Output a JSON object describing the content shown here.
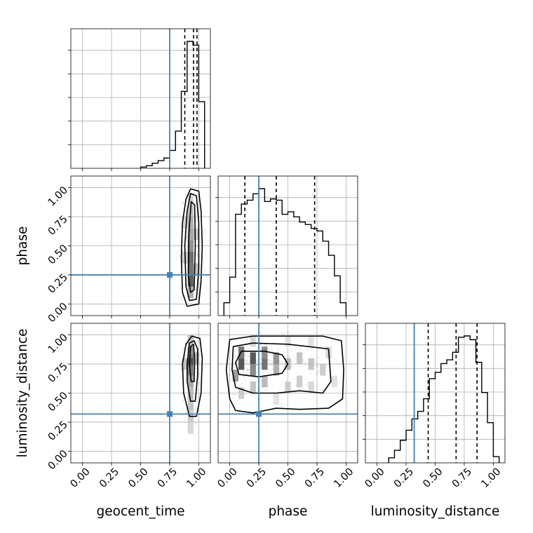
{
  "chart_data": {
    "type": "corner",
    "parameters": [
      "geocent_time",
      "phase",
      "luminosity_distance"
    ],
    "axis_range": [
      -0.1,
      1.1
    ],
    "ticks": [
      0.0,
      0.25,
      0.5,
      0.75,
      1.0
    ],
    "tick_labels": [
      "0.00",
      "0.25",
      "0.50",
      "0.75",
      "1.00"
    ],
    "grid": true,
    "colors": {
      "truth": "#4682b4",
      "hist": "#000000",
      "quantile": "#000000",
      "grid": "#b0b0b0"
    },
    "truths": {
      "geocent_time": 0.75,
      "phase": 0.25,
      "luminosity_distance": 0.32
    },
    "marginals": [
      {
        "parameter": "geocent_time",
        "bin_edges": [
          0.5,
          0.55,
          0.6,
          0.65,
          0.7,
          0.75,
          0.8,
          0.85,
          0.9,
          0.95,
          1.0,
          1.05
        ],
        "counts": [
          1,
          2,
          4,
          6,
          8,
          14,
          29,
          60,
          99,
          96,
          52
        ],
        "quantiles": [
          0.88,
          0.955,
          0.985
        ]
      },
      {
        "parameter": "phase",
        "bin_edges": [
          -0.05,
          0.0,
          0.05,
          0.1,
          0.15,
          0.2,
          0.25,
          0.3,
          0.35,
          0.4,
          0.45,
          0.5,
          0.55,
          0.6,
          0.65,
          0.7,
          0.75,
          0.8,
          0.85,
          0.9,
          0.95,
          1.0
        ],
        "counts": [
          10,
          30,
          79,
          87,
          90,
          95,
          99,
          89,
          91,
          90,
          79,
          81,
          77,
          73,
          71,
          68,
          66,
          58,
          47,
          31,
          10
        ],
        "quantiles": [
          0.13,
          0.4,
          0.73
        ]
      },
      {
        "parameter": "luminosity_distance",
        "bin_edges": [
          0.1,
          0.15,
          0.2,
          0.25,
          0.3,
          0.35,
          0.4,
          0.45,
          0.5,
          0.55,
          0.6,
          0.65,
          0.7,
          0.75,
          0.8,
          0.85,
          0.9,
          0.95,
          1.0,
          1.05
        ],
        "counts": [
          4,
          10,
          18,
          26,
          35,
          41,
          51,
          67,
          72,
          79,
          82,
          88,
          100,
          101,
          98,
          80,
          56,
          32,
          5
        ],
        "quantiles": [
          0.44,
          0.68,
          0.86
        ]
      }
    ],
    "joints": [
      {
        "x": "geocent_time",
        "y": "phase",
        "contours": [
          {
            "level": "outer",
            "points": [
              [
                0.9,
                -0.02
              ],
              [
                1.0,
                0.0
              ],
              [
                1.02,
                0.2
              ],
              [
                1.03,
                0.5
              ],
              [
                1.02,
                0.8
              ],
              [
                1.0,
                0.97
              ],
              [
                0.93,
                0.99
              ],
              [
                0.89,
                0.9
              ],
              [
                0.86,
                0.7
              ],
              [
                0.85,
                0.4
              ],
              [
                0.86,
                0.1
              ]
            ]
          },
          {
            "level": "middle",
            "points": [
              [
                0.92,
                0.03
              ],
              [
                0.98,
                0.04
              ],
              [
                1.0,
                0.3
              ],
              [
                1.0,
                0.7
              ],
              [
                0.98,
                0.93
              ],
              [
                0.93,
                0.95
              ],
              [
                0.9,
                0.8
              ],
              [
                0.88,
                0.5
              ],
              [
                0.89,
                0.15
              ]
            ]
          },
          {
            "level": "inner",
            "points": [
              [
                0.93,
                0.1
              ],
              [
                0.96,
                0.12
              ],
              [
                0.97,
                0.5
              ],
              [
                0.965,
                0.85
              ],
              [
                0.935,
                0.88
              ],
              [
                0.915,
                0.6
              ],
              [
                0.91,
                0.25
              ]
            ]
          }
        ],
        "density": [
          [
            0.93,
            0.2,
            0.8
          ],
          [
            0.93,
            0.3,
            0.7
          ],
          [
            0.93,
            0.4,
            0.75
          ],
          [
            0.93,
            0.5,
            0.55
          ],
          [
            0.93,
            0.6,
            0.45
          ],
          [
            0.93,
            0.7,
            0.4
          ],
          [
            0.93,
            0.8,
            0.3
          ],
          [
            0.93,
            0.1,
            0.4
          ],
          [
            0.93,
            0.9,
            0.2
          ],
          [
            0.98,
            0.3,
            0.3
          ],
          [
            0.98,
            0.6,
            0.25
          ],
          [
            0.88,
            0.4,
            0.25
          ],
          [
            0.88,
            0.7,
            0.2
          ]
        ]
      },
      {
        "x": "geocent_time",
        "y": "luminosity_distance",
        "contours": [
          {
            "level": "outer",
            "points": [
              [
                0.92,
                0.3
              ],
              [
                0.98,
                0.3
              ],
              [
                1.02,
                0.5
              ],
              [
                1.03,
                0.8
              ],
              [
                1.01,
                0.97
              ],
              [
                0.94,
                0.99
              ],
              [
                0.89,
                0.92
              ],
              [
                0.86,
                0.75
              ],
              [
                0.87,
                0.5
              ]
            ]
          },
          {
            "level": "middle",
            "points": [
              [
                0.93,
                0.43
              ],
              [
                0.97,
                0.43
              ],
              [
                0.99,
                0.65
              ],
              [
                0.99,
                0.88
              ],
              [
                0.96,
                0.95
              ],
              [
                0.92,
                0.93
              ],
              [
                0.9,
                0.75
              ],
              [
                0.9,
                0.6
              ]
            ]
          },
          {
            "level": "inner",
            "points": [
              [
                0.935,
                0.6
              ],
              [
                0.96,
                0.6
              ],
              [
                0.965,
                0.78
              ],
              [
                0.955,
                0.92
              ],
              [
                0.93,
                0.9
              ],
              [
                0.92,
                0.75
              ]
            ]
          }
        ],
        "density": [
          [
            0.93,
            0.78,
            0.9
          ],
          [
            0.93,
            0.7,
            0.65
          ],
          [
            0.93,
            0.85,
            0.55
          ],
          [
            0.93,
            0.6,
            0.45
          ],
          [
            0.93,
            0.5,
            0.35
          ],
          [
            0.93,
            0.4,
            0.3
          ],
          [
            0.93,
            0.95,
            0.3
          ],
          [
            0.98,
            0.8,
            0.35
          ],
          [
            0.88,
            0.75,
            0.3
          ],
          [
            0.93,
            0.3,
            0.25
          ],
          [
            0.93,
            0.2,
            0.2
          ]
        ]
      },
      {
        "x": "phase",
        "y": "luminosity_distance",
        "contours": [
          {
            "level": "outer",
            "points": [
              [
                0.0,
                0.45
              ],
              [
                0.05,
                0.35
              ],
              [
                0.2,
                0.33
              ],
              [
                0.4,
                0.37
              ],
              [
                0.6,
                0.36
              ],
              [
                0.85,
                0.37
              ],
              [
                0.97,
                0.45
              ],
              [
                0.98,
                0.7
              ],
              [
                0.96,
                0.95
              ],
              [
                0.8,
                0.99
              ],
              [
                0.5,
                0.99
              ],
              [
                0.2,
                0.99
              ],
              [
                0.0,
                0.96
              ],
              [
                -0.03,
                0.7
              ]
            ]
          },
          {
            "level": "middle",
            "points": [
              [
                0.05,
                0.55
              ],
              [
                0.2,
                0.5
              ],
              [
                0.4,
                0.5
              ],
              [
                0.6,
                0.52
              ],
              [
                0.8,
                0.5
              ],
              [
                0.87,
                0.6
              ],
              [
                0.85,
                0.88
              ],
              [
                0.5,
                0.92
              ],
              [
                0.2,
                0.93
              ],
              [
                0.03,
                0.9
              ],
              [
                0.02,
                0.7
              ]
            ]
          },
          {
            "level": "inner",
            "points": [
              [
                0.08,
                0.66
              ],
              [
                0.25,
                0.64
              ],
              [
                0.45,
                0.67
              ],
              [
                0.5,
                0.75
              ],
              [
                0.45,
                0.83
              ],
              [
                0.3,
                0.86
              ],
              [
                0.1,
                0.86
              ],
              [
                0.05,
                0.76
              ]
            ]
          }
        ],
        "density": [
          [
            0.1,
            0.75,
            0.85
          ],
          [
            0.1,
            0.85,
            0.7
          ],
          [
            0.2,
            0.8,
            0.85
          ],
          [
            0.2,
            0.7,
            0.6
          ],
          [
            0.3,
            0.75,
            0.7
          ],
          [
            0.3,
            0.85,
            0.6
          ],
          [
            0.4,
            0.8,
            0.55
          ],
          [
            0.4,
            0.7,
            0.4
          ],
          [
            0.05,
            0.65,
            0.5
          ],
          [
            0.5,
            0.75,
            0.35
          ],
          [
            0.6,
            0.8,
            0.3
          ],
          [
            0.7,
            0.75,
            0.3
          ],
          [
            0.8,
            0.7,
            0.25
          ],
          [
            0.6,
            0.6,
            0.25
          ],
          [
            0.3,
            0.6,
            0.35
          ],
          [
            0.2,
            0.55,
            0.3
          ],
          [
            0.7,
            0.55,
            0.2
          ],
          [
            0.5,
            0.55,
            0.25
          ],
          [
            0.9,
            0.6,
            0.15
          ],
          [
            0.85,
            0.85,
            0.2
          ],
          [
            0.1,
            0.5,
            0.25
          ],
          [
            0.4,
            0.45,
            0.15
          ],
          [
            0.7,
            0.95,
            0.15
          ],
          [
            0.2,
            0.95,
            0.2
          ],
          [
            0.5,
            0.95,
            0.15
          ]
        ]
      }
    ]
  }
}
